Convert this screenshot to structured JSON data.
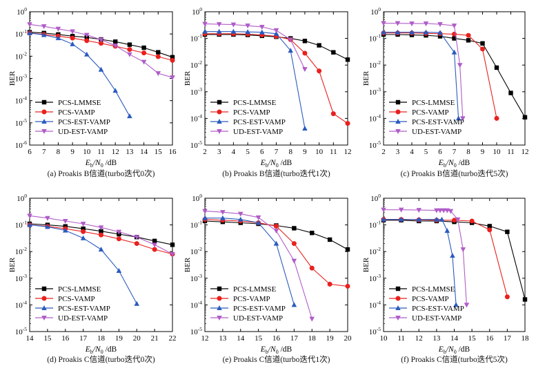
{
  "figure": {
    "ylabel": "BER",
    "xlabel_main": "E",
    "xlabel_sub1": "b",
    "xlabel_mid": "/N",
    "xlabel_sub2": "0",
    "xlabel_unit": " /dB",
    "legend_placement": "lower-left",
    "series_styles": [
      {
        "name": "PCS-LMMSE",
        "color": "#000000",
        "marker": "square"
      },
      {
        "name": "PCS-VAMP",
        "color": "#e8211e",
        "marker": "circle"
      },
      {
        "name": "PCS-EST-VAMP",
        "color": "#2a5bbf",
        "marker": "triangle-up"
      },
      {
        "name": "UD-EST-VAMP",
        "color": "#b05cc8",
        "marker": "triangle-down"
      }
    ]
  },
  "chart_data": [
    {
      "type": "line",
      "yscale": "log",
      "title": "(a) Proakis B信道(turbo迭代0次)",
      "xlim": [
        6,
        16
      ],
      "xticks": [
        6,
        7,
        8,
        9,
        10,
        11,
        12,
        13,
        14,
        15,
        16
      ],
      "ylim_exp": [
        -6,
        0
      ],
      "series": [
        {
          "name": "PCS-LMMSE",
          "x": [
            6,
            7,
            8,
            9,
            10,
            11,
            12,
            13,
            14,
            15,
            16
          ],
          "y": [
            0.12,
            0.11,
            0.095,
            0.08,
            0.07,
            0.057,
            0.045,
            0.033,
            0.024,
            0.015,
            0.009
          ]
        },
        {
          "name": "PCS-VAMP",
          "x": [
            6,
            7,
            8,
            9,
            10,
            11,
            12,
            13,
            14,
            15,
            16
          ],
          "y": [
            0.11,
            0.095,
            0.08,
            0.065,
            0.05,
            0.038,
            0.028,
            0.02,
            0.014,
            0.0095,
            0.0065
          ]
        },
        {
          "name": "PCS-EST-VAMP",
          "x": [
            6,
            7,
            8,
            9,
            10,
            11,
            12,
            13
          ],
          "y": [
            0.11,
            0.09,
            0.065,
            0.035,
            0.012,
            0.0025,
            0.00028,
            2e-05
          ]
        },
        {
          "name": "UD-EST-VAMP",
          "x": [
            6,
            7,
            8,
            9,
            10,
            11,
            12,
            13,
            14,
            15,
            16
          ],
          "y": [
            0.27,
            0.22,
            0.17,
            0.13,
            0.09,
            0.055,
            0.03,
            0.012,
            0.0055,
            0.0017,
            0.0011
          ]
        }
      ]
    },
    {
      "type": "line",
      "yscale": "log",
      "title": "(b) Proakis B信道(turbo迭代1次)",
      "xlim": [
        2,
        12
      ],
      "xticks": [
        2,
        3,
        4,
        5,
        6,
        7,
        8,
        9,
        10,
        11,
        12
      ],
      "ylim_exp": [
        -5,
        0
      ],
      "series": [
        {
          "name": "PCS-LMMSE",
          "x": [
            2,
            3,
            4,
            5,
            6,
            7,
            8,
            9,
            10,
            11,
            12
          ],
          "y": [
            0.14,
            0.14,
            0.14,
            0.135,
            0.125,
            0.115,
            0.1,
            0.08,
            0.055,
            0.03,
            0.016
          ]
        },
        {
          "name": "PCS-VAMP",
          "x": [
            2,
            3,
            4,
            5,
            6,
            7,
            8,
            9,
            10,
            11,
            12
          ],
          "y": [
            0.15,
            0.15,
            0.15,
            0.145,
            0.135,
            0.12,
            0.09,
            0.028,
            0.006,
            0.00015,
            6.5e-05
          ]
        },
        {
          "name": "PCS-EST-VAMP",
          "x": [
            2,
            3,
            4,
            5,
            6,
            7,
            8,
            9
          ],
          "y": [
            0.18,
            0.18,
            0.18,
            0.175,
            0.17,
            0.15,
            0.035,
            4.2e-05
          ]
        },
        {
          "name": "UD-EST-VAMP",
          "x": [
            2,
            3,
            4,
            5,
            6,
            7,
            8,
            9
          ],
          "y": [
            0.35,
            0.34,
            0.33,
            0.3,
            0.27,
            0.2,
            0.09,
            0.007
          ]
        }
      ]
    },
    {
      "type": "line",
      "yscale": "log",
      "title": "(c) Proakis B信道(turbo迭代5次)",
      "xlim": [
        2,
        12
      ],
      "xticks": [
        2,
        3,
        4,
        5,
        6,
        7,
        8,
        9,
        10,
        11,
        12
      ],
      "ylim_exp": [
        -5,
        0
      ],
      "series": [
        {
          "name": "PCS-LMMSE",
          "x": [
            2,
            3,
            4,
            5,
            6,
            7,
            8,
            9,
            10,
            11,
            12
          ],
          "y": [
            0.14,
            0.14,
            0.135,
            0.13,
            0.12,
            0.1,
            0.085,
            0.065,
            0.008,
            0.0009,
            0.00011
          ]
        },
        {
          "name": "PCS-VAMP",
          "x": [
            2,
            3,
            4,
            5,
            6,
            7,
            8,
            9,
            10
          ],
          "y": [
            0.16,
            0.16,
            0.16,
            0.155,
            0.15,
            0.145,
            0.13,
            0.04,
            0.0001
          ]
        },
        {
          "name": "PCS-EST-VAMP",
          "x": [
            2,
            3,
            4,
            5,
            6,
            7,
            7.3
          ],
          "y": [
            0.17,
            0.17,
            0.17,
            0.17,
            0.165,
            0.03,
            0.0001
          ]
        },
        {
          "name": "UD-EST-VAMP",
          "x": [
            2,
            3,
            4,
            5,
            6,
            7,
            7.4,
            7.6
          ],
          "y": [
            0.37,
            0.37,
            0.36,
            0.36,
            0.34,
            0.3,
            0.01,
            0.0001
          ]
        }
      ]
    },
    {
      "type": "line",
      "yscale": "log",
      "title": "(d) Proakis C信道(turbo迭代0次)",
      "xlim": [
        14,
        22
      ],
      "xticks": [
        14,
        15,
        16,
        17,
        18,
        19,
        20,
        21,
        22
      ],
      "ylim_exp": [
        -5,
        0
      ],
      "series": [
        {
          "name": "PCS-LMMSE",
          "x": [
            14,
            15,
            16,
            17,
            18,
            19,
            20,
            21,
            22
          ],
          "y": [
            0.11,
            0.1,
            0.088,
            0.072,
            0.058,
            0.045,
            0.035,
            0.025,
            0.018
          ]
        },
        {
          "name": "PCS-VAMP",
          "x": [
            14,
            15,
            16,
            17,
            18,
            19,
            20,
            21,
            22
          ],
          "y": [
            0.1,
            0.088,
            0.072,
            0.056,
            0.042,
            0.03,
            0.02,
            0.012,
            0.008
          ]
        },
        {
          "name": "PCS-EST-VAMP",
          "x": [
            14,
            15,
            16,
            17,
            18,
            19,
            20
          ],
          "y": [
            0.1,
            0.085,
            0.062,
            0.032,
            0.012,
            0.0019,
            0.00011
          ]
        },
        {
          "name": "UD-EST-VAMP",
          "x": [
            14,
            15,
            16,
            17,
            18,
            19,
            20,
            21,
            22
          ],
          "y": [
            0.22,
            0.18,
            0.14,
            0.11,
            0.08,
            0.055,
            0.035,
            0.018,
            0.008
          ]
        }
      ]
    },
    {
      "type": "line",
      "yscale": "log",
      "title": "(e) Proakis C信道(turbo迭代1次)",
      "xlim": [
        12,
        20
      ],
      "xticks": [
        12,
        13,
        14,
        15,
        16,
        17,
        18,
        19,
        20
      ],
      "ylim_exp": [
        -5,
        0
      ],
      "series": [
        {
          "name": "PCS-LMMSE",
          "x": [
            12,
            13,
            14,
            15,
            16,
            17,
            18,
            19,
            20
          ],
          "y": [
            0.14,
            0.13,
            0.12,
            0.11,
            0.095,
            0.075,
            0.05,
            0.028,
            0.012
          ]
        },
        {
          "name": "PCS-VAMP",
          "x": [
            12,
            13,
            14,
            15,
            16,
            17,
            18,
            19,
            20
          ],
          "y": [
            0.16,
            0.15,
            0.14,
            0.12,
            0.09,
            0.02,
            0.0024,
            0.0006,
            0.0005
          ]
        },
        {
          "name": "PCS-EST-VAMP",
          "x": [
            12,
            13,
            14,
            15,
            16,
            17
          ],
          "y": [
            0.18,
            0.18,
            0.16,
            0.12,
            0.02,
            0.0001
          ]
        },
        {
          "name": "UD-EST-VAMP",
          "x": [
            12,
            13,
            14,
            15,
            16,
            17,
            18
          ],
          "y": [
            0.33,
            0.3,
            0.26,
            0.19,
            0.06,
            0.0045,
            3e-05
          ]
        }
      ]
    },
    {
      "type": "line",
      "yscale": "log",
      "title": "(f) Proakis C信道(turbo迭代5次)",
      "xlim": [
        10,
        18
      ],
      "xticks": [
        10,
        11,
        12,
        13,
        14,
        15,
        16,
        17,
        18
      ],
      "ylim_exp": [
        -5,
        0
      ],
      "series": [
        {
          "name": "PCS-LMMSE",
          "x": [
            10,
            11,
            12,
            13,
            14,
            15,
            16,
            17,
            18
          ],
          "y": [
            0.15,
            0.15,
            0.14,
            0.14,
            0.13,
            0.12,
            0.09,
            0.055,
            0.00016
          ]
        },
        {
          "name": "PCS-VAMP",
          "x": [
            10,
            11,
            12,
            13,
            14,
            15,
            16,
            17
          ],
          "y": [
            0.16,
            0.16,
            0.155,
            0.15,
            0.15,
            0.14,
            0.065,
            0.0002
          ]
        },
        {
          "name": "PCS-EST-VAMP",
          "x": [
            10,
            11,
            12,
            13,
            13.3,
            13.6,
            13.9,
            14.1
          ],
          "y": [
            0.16,
            0.16,
            0.16,
            0.16,
            0.16,
            0.06,
            0.007,
            0.0001
          ]
        },
        {
          "name": "UD-EST-VAMP",
          "x": [
            10,
            11,
            12,
            13,
            13.2,
            13.4,
            13.6,
            13.8,
            14.2,
            14.5,
            14.7
          ],
          "y": [
            0.37,
            0.37,
            0.36,
            0.35,
            0.35,
            0.35,
            0.35,
            0.33,
            0.16,
            0.012,
            0.0001
          ]
        }
      ]
    }
  ]
}
